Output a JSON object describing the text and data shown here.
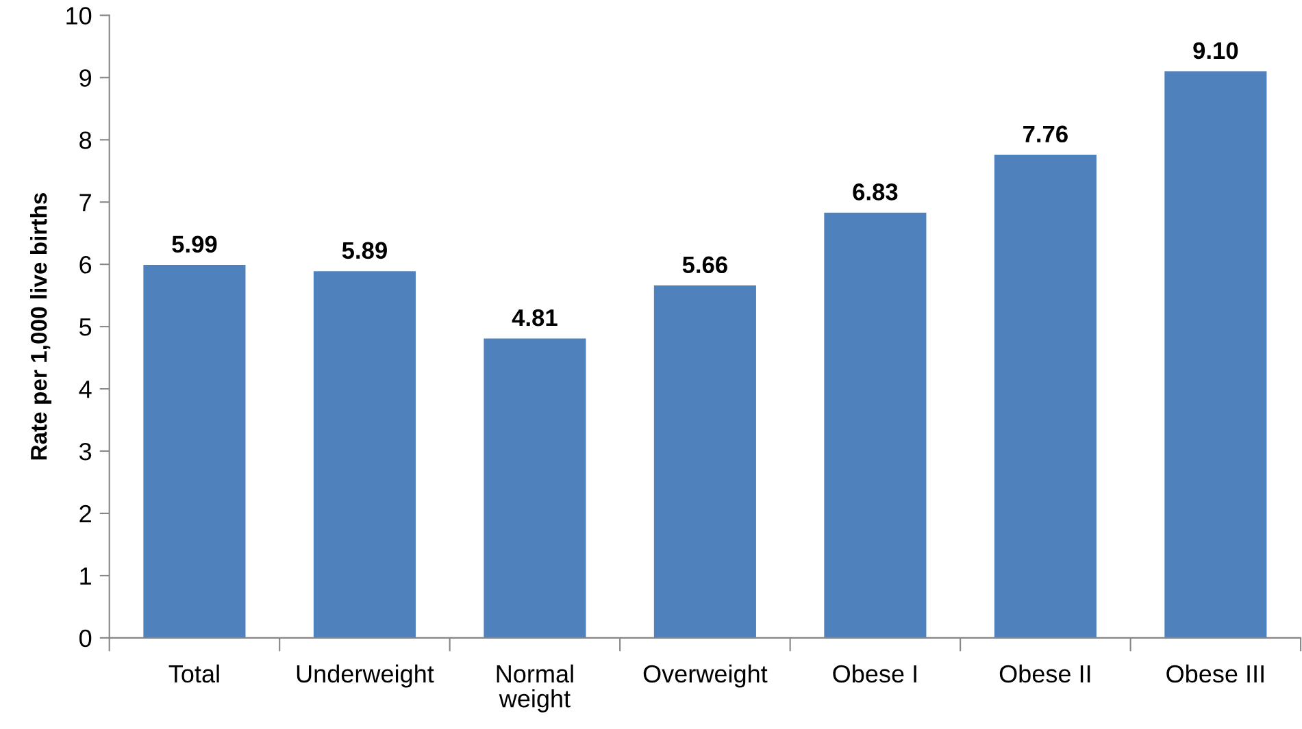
{
  "chart_data": {
    "type": "bar",
    "ylabel": "Rate per 1,000 live births",
    "categories": [
      "Total",
      "Underweight",
      "Normal\nweight",
      "Overweight",
      "Obese I",
      "Obese II",
      "Obese III"
    ],
    "values": [
      5.99,
      5.89,
      4.81,
      5.66,
      6.83,
      7.76,
      9.1
    ],
    "value_labels": [
      "5.99",
      "5.89",
      "4.81",
      "5.66",
      "6.83",
      "7.76",
      "9.10"
    ],
    "color": "#4f81bd",
    "ylim": [
      0,
      10
    ],
    "yticks": [
      0,
      1,
      2,
      3,
      4,
      5,
      6,
      7,
      8,
      9,
      10
    ],
    "grid": false
  }
}
